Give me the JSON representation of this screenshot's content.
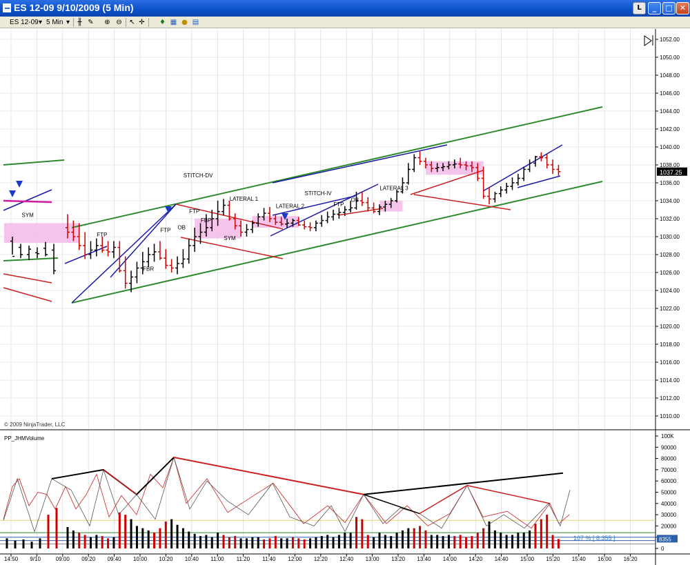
{
  "window": {
    "title": "ES 12-09  9/10/2009 (5 Min)",
    "btn_l": "L",
    "btn_min": "_",
    "btn_max": "□",
    "btn_close": "✕"
  },
  "toolbar": {
    "instrument": "ES 12-09",
    "interval": "5 Min",
    "dropdown_arrow": "▾"
  },
  "colors": {
    "up_bar": "#000000",
    "down_bar": "#cc0000",
    "channel_green": "#2d8a2d",
    "trend_blue": "#1a1aaa",
    "trend_red": "#cc2020",
    "lateral_pink": "#f4b8e8",
    "grid": "#d4d4d4",
    "volume_yellow": "#e8d070"
  },
  "chart_data": [
    {
      "type": "ohlc",
      "panel": "price",
      "title": "",
      "copyright": "© 2009 NinjaTrader, LLC",
      "y_ticks": [
        "1052.00",
        "1050.00",
        "1048.00",
        "1046.00",
        "1044.00",
        "1042.00",
        "1040.00",
        "1038.00",
        "1036.00",
        "1034.00",
        "1032.00",
        "1030.00",
        "1028.00",
        "1026.00",
        "1024.00",
        "1022.00",
        "1020.00",
        "1018.00",
        "1016.00",
        "1014.00",
        "1012.00",
        "1010.00"
      ],
      "ylim": [
        1009,
        1053
      ],
      "last_price": "1037.25",
      "x_ticks": [
        "14:50",
        "9/10",
        "09:00",
        "09:20",
        "09:40",
        "10:00",
        "10:20",
        "10:40",
        "11:00",
        "11:20",
        "11:40",
        "12:00",
        "12:20",
        "12:40",
        "13:00",
        "13:20",
        "13:40",
        "14:00",
        "14:20",
        "14:40",
        "15:00",
        "15:20",
        "15:40",
        "16:00",
        "16:20"
      ],
      "annotations": [
        {
          "text": "SYM",
          "bar": -7,
          "price": 1032.2
        },
        {
          "text": "FTP",
          "bar": 6,
          "price": 1030.0
        },
        {
          "text": "FBR",
          "bar": 14,
          "price": 1026.2
        },
        {
          "text": "FTP",
          "bar": 17,
          "price": 1030.5
        },
        {
          "text": "OB",
          "bar": 20,
          "price": 1030.8
        },
        {
          "text": "FTP",
          "bar": 22,
          "price": 1032.6
        },
        {
          "text": "FBP",
          "bar": 24,
          "price": 1031.6
        },
        {
          "text": "STITCH-DV",
          "bar": 21,
          "price": 1036.6
        },
        {
          "text": "LATERAL 1",
          "bar": 29,
          "price": 1034.0
        },
        {
          "text": "SYM",
          "bar": 28,
          "price": 1029.6
        },
        {
          "text": "LATERAL 2",
          "bar": 37,
          "price": 1033.2
        },
        {
          "text": "STITCH-IV",
          "bar": 42,
          "price": 1034.6
        },
        {
          "text": "FTP",
          "bar": 47,
          "price": 1033.4
        },
        {
          "text": "OB",
          "bar": 50,
          "price": 1033.9
        },
        {
          "text": "LATERAL 3",
          "bar": 55,
          "price": 1035.2
        }
      ],
      "bars_open": [
        1031.0,
        1030.5,
        1030.0,
        1029.0,
        1028.0,
        1028.5,
        1029.0,
        1028.5,
        1028.3,
        1028.8,
        1026.2,
        1024.8,
        1025.5,
        1026.5,
        1027.2,
        1028.0,
        1028.3,
        1027.6,
        1026.8,
        1026.5,
        1027.0,
        1027.5,
        1029.0,
        1030.0,
        1030.5,
        1031.0,
        1032.0,
        1032.8,
        1033.5,
        1032.0,
        1031.2,
        1030.5,
        1030.8,
        1031.5,
        1032.2,
        1032.6,
        1032.0,
        1031.6,
        1031.4,
        1031.5,
        1031.8,
        1031.3,
        1031.1,
        1031.0,
        1031.5,
        1031.8,
        1032.2,
        1032.5,
        1032.7,
        1033.0,
        1033.2,
        1034.0,
        1033.8,
        1033.2,
        1032.8,
        1033.3,
        1033.6,
        1034.0,
        1035.0,
        1036.0,
        1037.5,
        1038.8,
        1038.4,
        1038.0,
        1037.6,
        1037.7,
        1037.8,
        1038.0,
        1038.1,
        1038.0,
        1037.9,
        1037.7,
        1036.5,
        1034.5,
        1034.2,
        1034.8,
        1035.2,
        1035.6,
        1036.0,
        1036.5,
        1037.5,
        1038.2,
        1038.9,
        1038.8,
        1038.0,
        1037.5
      ],
      "bars_high": [
        1032.5,
        1031.8,
        1031.5,
        1030.5,
        1029.5,
        1029.8,
        1030.0,
        1029.5,
        1029.5,
        1029.5,
        1027.8,
        1026.2,
        1027.2,
        1028.3,
        1028.8,
        1029.2,
        1029.5,
        1028.6,
        1027.5,
        1027.8,
        1028.6,
        1029.8,
        1031.0,
        1031.5,
        1032.5,
        1033.0,
        1034.0,
        1034.2,
        1034.0,
        1032.6,
        1031.8,
        1031.4,
        1031.8,
        1032.6,
        1033.2,
        1033.3,
        1032.5,
        1032.2,
        1032.0,
        1032.0,
        1032.2,
        1031.8,
        1031.6,
        1031.8,
        1032.4,
        1032.8,
        1033.0,
        1033.2,
        1033.4,
        1034.0,
        1035.0,
        1035.0,
        1034.4,
        1033.8,
        1033.6,
        1034.0,
        1034.3,
        1035.2,
        1036.6,
        1038.2,
        1039.2,
        1039.5,
        1038.8,
        1038.4,
        1038.2,
        1038.2,
        1038.4,
        1038.6,
        1038.8,
        1038.4,
        1038.4,
        1038.2,
        1037.8,
        1035.5,
        1035.0,
        1035.6,
        1036.0,
        1036.6,
        1037.0,
        1037.8,
        1038.6,
        1039.0,
        1039.4,
        1039.2,
        1038.6,
        1038.0
      ],
      "bars_low": [
        1029.8,
        1029.5,
        1028.5,
        1027.5,
        1027.5,
        1027.8,
        1028.2,
        1027.8,
        1027.6,
        1026.0,
        1024.2,
        1023.8,
        1024.8,
        1025.8,
        1026.6,
        1027.2,
        1027.4,
        1026.4,
        1026.0,
        1025.8,
        1026.5,
        1027.0,
        1028.3,
        1029.2,
        1030.0,
        1030.6,
        1031.2,
        1032.4,
        1031.8,
        1030.8,
        1030.0,
        1030.0,
        1030.4,
        1031.1,
        1031.8,
        1031.6,
        1031.3,
        1031.2,
        1031.0,
        1031.1,
        1031.2,
        1030.8,
        1030.6,
        1030.6,
        1031.1,
        1031.5,
        1031.8,
        1032.0,
        1032.3,
        1032.7,
        1033.0,
        1033.4,
        1032.8,
        1032.6,
        1032.4,
        1032.8,
        1033.2,
        1033.8,
        1034.8,
        1035.8,
        1037.2,
        1038.0,
        1037.6,
        1037.2,
        1037.2,
        1037.3,
        1037.5,
        1037.6,
        1037.6,
        1037.4,
        1037.2,
        1036.2,
        1034.2,
        1033.6,
        1033.8,
        1034.4,
        1034.8,
        1035.2,
        1035.7,
        1036.2,
        1037.2,
        1037.8,
        1038.4,
        1037.6,
        1037.0,
        1036.8
      ],
      "bars_close": [
        1030.5,
        1030.0,
        1029.0,
        1028.0,
        1028.5,
        1029.0,
        1028.5,
        1028.3,
        1028.8,
        1026.2,
        1024.8,
        1025.5,
        1026.5,
        1027.2,
        1028.0,
        1028.3,
        1027.6,
        1026.8,
        1026.5,
        1027.0,
        1027.5,
        1029.0,
        1030.0,
        1030.5,
        1031.0,
        1032.0,
        1032.8,
        1033.5,
        1032.0,
        1031.2,
        1030.5,
        1030.8,
        1031.5,
        1032.2,
        1032.6,
        1032.0,
        1031.6,
        1031.4,
        1031.5,
        1031.8,
        1031.3,
        1031.1,
        1031.0,
        1031.5,
        1031.8,
        1032.2,
        1032.5,
        1032.7,
        1033.0,
        1033.2,
        1034.0,
        1033.8,
        1033.2,
        1032.8,
        1033.3,
        1033.6,
        1034.0,
        1035.0,
        1036.0,
        1037.5,
        1038.8,
        1038.4,
        1038.0,
        1037.6,
        1037.7,
        1037.8,
        1038.0,
        1038.1,
        1038.0,
        1037.9,
        1037.7,
        1036.5,
        1034.5,
        1034.2,
        1034.8,
        1035.2,
        1035.6,
        1036.0,
        1036.5,
        1037.5,
        1038.2,
        1038.9,
        1038.8,
        1038.0,
        1037.5,
        1037.25
      ]
    },
    {
      "type": "bar",
      "panel": "volume",
      "title": "PP_JHMVolume",
      "y_ticks": [
        "100K",
        "90000",
        "80000",
        "70000",
        "60000",
        "50000",
        "40000",
        "30000",
        "20000",
        "10000",
        "0"
      ],
      "ylim": [
        0,
        105000
      ],
      "level_label": "107 % [ 8,355 ]",
      "last_value": "8355",
      "values": [
        19000,
        16000,
        14000,
        12000,
        10000,
        12000,
        11000,
        9000,
        10000,
        32000,
        30000,
        26000,
        20000,
        18000,
        16000,
        14000,
        18000,
        24000,
        26000,
        21000,
        18000,
        15000,
        13000,
        11000,
        12000,
        10000,
        14000,
        12000,
        10000,
        11000,
        9000,
        9000,
        10000,
        10000,
        8000,
        9000,
        11000,
        9000,
        9000,
        10000,
        9000,
        8000,
        9000,
        10000,
        11000,
        12000,
        10000,
        12000,
        14000,
        14000,
        28000,
        26000,
        12000,
        10000,
        14000,
        12000,
        11000,
        14000,
        16000,
        18000,
        18000,
        20000,
        16000,
        12000,
        12000,
        11000,
        12000,
        11000,
        12000,
        10000,
        11000,
        14000,
        18000,
        24000,
        16000,
        14000,
        12000,
        12000,
        14000,
        14000,
        16000,
        22000,
        26000,
        30000,
        12000,
        8355
      ],
      "dir": [
        0,
        0,
        1,
        1,
        0,
        0,
        1,
        1,
        0,
        1,
        1,
        0,
        0,
        0,
        0,
        1,
        1,
        1,
        0,
        0,
        0,
        0,
        0,
        0,
        0,
        0,
        0,
        1,
        1,
        1,
        0,
        0,
        0,
        0,
        1,
        1,
        1,
        0,
        0,
        1,
        1,
        1,
        0,
        0,
        0,
        0,
        0,
        0,
        0,
        0,
        1,
        1,
        1,
        0,
        0,
        0,
        0,
        0,
        0,
        0,
        1,
        1,
        1,
        0,
        0,
        0,
        0,
        1,
        1,
        1,
        1,
        1,
        1,
        0,
        0,
        0,
        0,
        0,
        0,
        0,
        0,
        1,
        1,
        1,
        1,
        1
      ]
    }
  ]
}
